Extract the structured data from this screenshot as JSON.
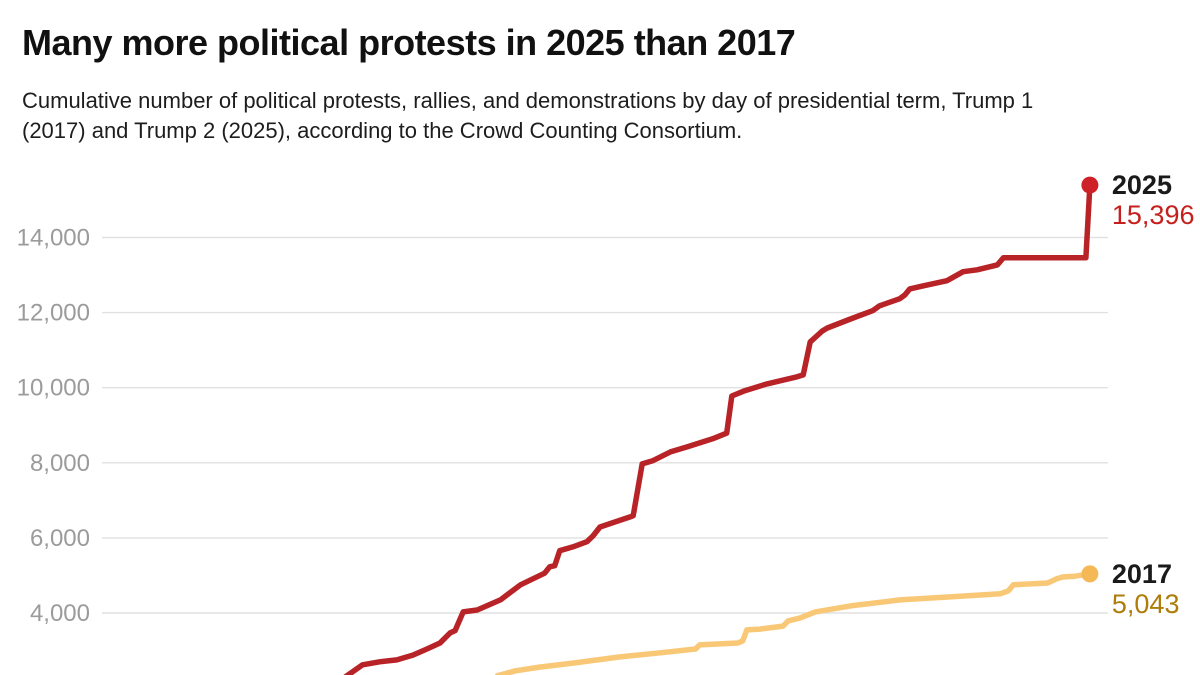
{
  "header": {
    "title": "Many more political protests in 2025 than 2017",
    "subtitle": "Cumulative number of political protests, rallies, and demonstrations by day of presidential term, Trump 1 (2017) and Trump 2 (2025), according to the Crowd Counting Consortium."
  },
  "chart_data": {
    "type": "line",
    "title": "Many more political protests in 2025 than 2017",
    "subtitle": "Cumulative number of political protests, rallies, and demonstrations by day of presidential term, Trump 1 (2017) and Trump 2 (2025), according to the Crowd Counting Consortium.",
    "source": "Crowd Counting Consortium",
    "xlabel": "day of presidential term",
    "ylabel": "Cumulative number of political protests, rallies, and demonstrations",
    "x_axis": {
      "tick_labels_visible": false,
      "normalized_range": [
        0,
        1
      ]
    },
    "y_axis": {
      "visible_range": [
        2350,
        15800
      ],
      "grid": true,
      "grid_color": "#e1e1e1",
      "tick_color": "#9b9b9b",
      "ticks": [
        {
          "value": 14000,
          "label": "14,000"
        },
        {
          "value": 12000,
          "label": "12,000"
        },
        {
          "value": 10000,
          "label": "10,000"
        },
        {
          "value": 8000,
          "label": "8,000"
        },
        {
          "value": 6000,
          "label": "6,000"
        },
        {
          "value": 4000,
          "label": "4,000"
        }
      ]
    },
    "legend_position": "end-of-line",
    "series": [
      {
        "name": "2025",
        "term": "Trump 2",
        "line_color": "#b82328",
        "dot_color": "#cd2127",
        "value_color": "#c5201d",
        "final_value": 15396,
        "final_value_label": "15,396",
        "points": [
          [
            0.242,
            2300
          ],
          [
            0.259,
            2620
          ],
          [
            0.276,
            2700
          ],
          [
            0.293,
            2750
          ],
          [
            0.309,
            2880
          ],
          [
            0.323,
            3040
          ],
          [
            0.336,
            3200
          ],
          [
            0.346,
            3470
          ],
          [
            0.351,
            3530
          ],
          [
            0.359,
            4030
          ],
          [
            0.373,
            4080
          ],
          [
            0.396,
            4350
          ],
          [
            0.416,
            4750
          ],
          [
            0.44,
            5060
          ],
          [
            0.445,
            5230
          ],
          [
            0.45,
            5260
          ],
          [
            0.455,
            5660
          ],
          [
            0.468,
            5760
          ],
          [
            0.482,
            5900
          ],
          [
            0.488,
            6050
          ],
          [
            0.495,
            6290
          ],
          [
            0.525,
            6560
          ],
          [
            0.528,
            6590
          ],
          [
            0.537,
            7970
          ],
          [
            0.547,
            8050
          ],
          [
            0.565,
            8290
          ],
          [
            0.582,
            8430
          ],
          [
            0.607,
            8640
          ],
          [
            0.619,
            8770
          ],
          [
            0.621,
            8790
          ],
          [
            0.626,
            9780
          ],
          [
            0.639,
            9920
          ],
          [
            0.661,
            10100
          ],
          [
            0.691,
            10290
          ],
          [
            0.697,
            10340
          ],
          [
            0.704,
            11220
          ],
          [
            0.716,
            11510
          ],
          [
            0.721,
            11590
          ],
          [
            0.744,
            11830
          ],
          [
            0.766,
            12050
          ],
          [
            0.773,
            12180
          ],
          [
            0.793,
            12370
          ],
          [
            0.798,
            12470
          ],
          [
            0.803,
            12630
          ],
          [
            0.816,
            12710
          ],
          [
            0.84,
            12850
          ],
          [
            0.856,
            13090
          ],
          [
            0.87,
            13140
          ],
          [
            0.89,
            13270
          ],
          [
            0.896,
            13460
          ],
          [
            0.978,
            13460
          ],
          [
            0.982,
            15396
          ]
        ]
      },
      {
        "name": "2017",
        "term": "Trump 1",
        "line_color": "#f9c877",
        "dot_color": "#f5b857",
        "value_color": "#ad7d08",
        "final_value": 5043,
        "final_value_label": "5,043",
        "points": [
          [
            0.393,
            2330
          ],
          [
            0.411,
            2460
          ],
          [
            0.435,
            2560
          ],
          [
            0.47,
            2670
          ],
          [
            0.515,
            2830
          ],
          [
            0.555,
            2940
          ],
          [
            0.59,
            3040
          ],
          [
            0.594,
            3150
          ],
          [
            0.632,
            3200
          ],
          [
            0.637,
            3260
          ],
          [
            0.641,
            3550
          ],
          [
            0.654,
            3570
          ],
          [
            0.677,
            3650
          ],
          [
            0.682,
            3790
          ],
          [
            0.694,
            3870
          ],
          [
            0.709,
            4030
          ],
          [
            0.744,
            4190
          ],
          [
            0.793,
            4350
          ],
          [
            0.843,
            4430
          ],
          [
            0.893,
            4510
          ],
          [
            0.901,
            4590
          ],
          [
            0.906,
            4750
          ],
          [
            0.94,
            4800
          ],
          [
            0.949,
            4910
          ],
          [
            0.955,
            4960
          ],
          [
            0.967,
            4980
          ],
          [
            0.982,
            5043
          ]
        ]
      }
    ]
  }
}
